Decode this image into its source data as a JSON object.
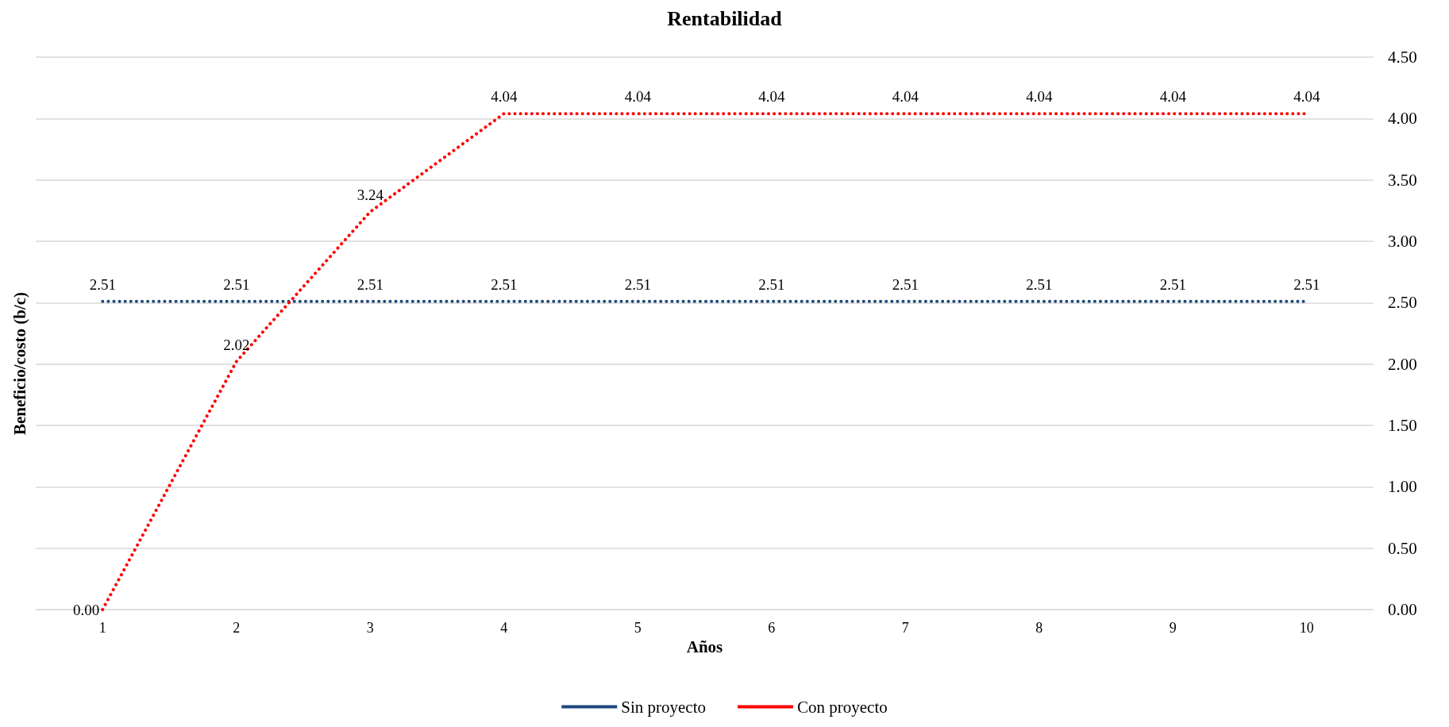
{
  "chart_data": {
    "type": "line",
    "title": "Rentabilidad",
    "xlabel": "Años",
    "ylabel": "Beneficio/costo (b/c)",
    "categories": [
      "1",
      "2",
      "3",
      "4",
      "5",
      "6",
      "7",
      "8",
      "9",
      "10"
    ],
    "series": [
      {
        "name": "Sin proyecto",
        "color": "#1f497d",
        "values": [
          2.51,
          2.51,
          2.51,
          2.51,
          2.51,
          2.51,
          2.51,
          2.51,
          2.51,
          2.51
        ],
        "value_labels": [
          "2.51",
          "2.51",
          "2.51",
          "2.51",
          "2.51",
          "2.51",
          "2.51",
          "2.51",
          "2.51",
          "2.51"
        ]
      },
      {
        "name": "Con proyecto",
        "color": "#ff0000",
        "values": [
          0,
          2.02,
          3.24,
          4.04,
          4.04,
          4.04,
          4.04,
          4.04,
          4.04,
          4.04
        ],
        "value_labels": [
          "0.00",
          "2.02",
          "3.24",
          "4.04",
          "4.04",
          "4.04",
          "4.04",
          "4.04",
          "4.04",
          "4.04"
        ]
      }
    ],
    "ylim": [
      0,
      4.5
    ],
    "yticks": [
      {
        "value": 0,
        "label": "0.00"
      },
      {
        "value": 0.5,
        "label": "0.50"
      },
      {
        "value": 1,
        "label": "1.00"
      },
      {
        "value": 1.5,
        "label": "1.50"
      },
      {
        "value": 2,
        "label": "2.00"
      },
      {
        "value": 2.5,
        "label": "2.50"
      },
      {
        "value": 3,
        "label": "3.00"
      },
      {
        "value": 3.5,
        "label": "3.50"
      },
      {
        "value": 4,
        "label": "4.00"
      },
      {
        "value": 4.5,
        "label": "4.50"
      }
    ],
    "grid": "y",
    "legend": "bottom",
    "marker": "none",
    "line_style": "dotted"
  }
}
